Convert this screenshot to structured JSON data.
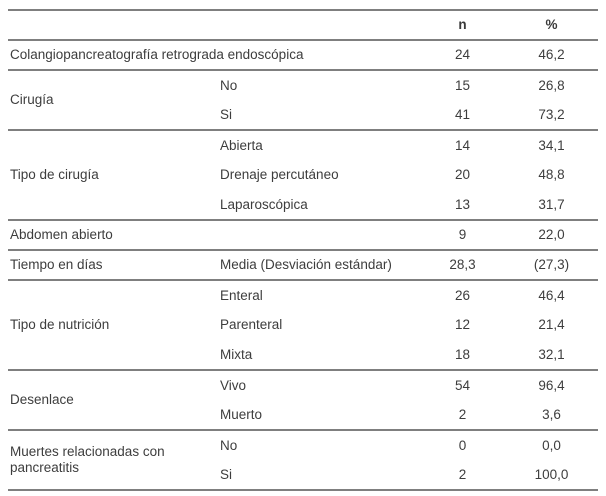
{
  "table": {
    "columns": {
      "n": "n",
      "pct": "%"
    },
    "groups": [
      {
        "label": "Colangiopancreatografía retrograda endoscópica",
        "rows": [
          {
            "sub": "",
            "n": "24",
            "pct": "46,2"
          }
        ]
      },
      {
        "label": "Cirugía",
        "rows": [
          {
            "sub": "No",
            "n": "15",
            "pct": "26,8"
          },
          {
            "sub": "Si",
            "n": "41",
            "pct": "73,2"
          }
        ]
      },
      {
        "label": "Tipo de cirugía",
        "rows": [
          {
            "sub": "Abierta",
            "n": "14",
            "pct": "34,1"
          },
          {
            "sub": "Drenaje percutáneo",
            "n": "20",
            "pct": "48,8"
          },
          {
            "sub": "Laparoscópica",
            "n": "13",
            "pct": "31,7"
          }
        ]
      },
      {
        "label": "Abdomen abierto",
        "rows": [
          {
            "sub": "",
            "n": "9",
            "pct": "22,0"
          }
        ]
      },
      {
        "label": "Tiempo en días",
        "rows": [
          {
            "sub": "Media (Desviación estándar)",
            "n": "28,3",
            "pct": "(27,3)"
          }
        ]
      },
      {
        "label": "Tipo de nutrición",
        "rows": [
          {
            "sub": "Enteral",
            "n": "26",
            "pct": "46,4"
          },
          {
            "sub": "Parenteral",
            "n": "12",
            "pct": "21,4"
          },
          {
            "sub": "Mixta",
            "n": "18",
            "pct": "32,1"
          }
        ]
      },
      {
        "label": "Desenlace",
        "rows": [
          {
            "sub": "Vivo",
            "n": "54",
            "pct": "96,4"
          },
          {
            "sub": "Muerto",
            "n": "2",
            "pct": "3,6"
          }
        ]
      },
      {
        "label": "Muertes relacionadas con pancreatitis",
        "rows": [
          {
            "sub": "No",
            "n": "0",
            "pct": "0,0"
          },
          {
            "sub": "Si",
            "n": "2",
            "pct": "100,0"
          }
        ]
      }
    ]
  }
}
